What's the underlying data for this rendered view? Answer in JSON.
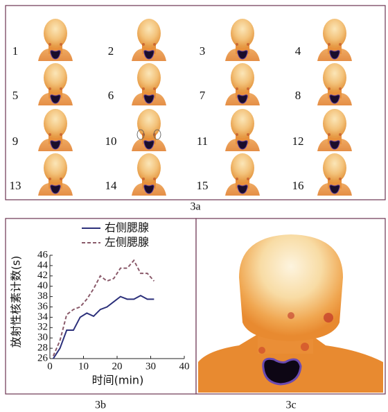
{
  "panel_a": {
    "labels": [
      "1",
      "2",
      "3",
      "4",
      "5",
      "6",
      "7",
      "8",
      "9",
      "10",
      "11",
      "12",
      "13",
      "14",
      "15",
      "16"
    ],
    "caption": "3a"
  },
  "chart_data": {
    "type": "line",
    "caption": "3b",
    "xlabel": "时间(min)",
    "ylabel": "放射性核素计数(s)",
    "x": [
      1,
      3,
      5,
      7,
      9,
      11,
      13,
      15,
      17,
      19,
      21,
      23,
      25,
      27,
      29,
      31
    ],
    "series": [
      {
        "name": "右侧腮腺",
        "color": "#2b2f7a",
        "dash": false,
        "values": [
          26,
          28,
          31.5,
          31.5,
          34,
          34.8,
          34.2,
          35.5,
          36,
          37,
          38,
          37.5,
          37.5,
          38.2,
          37.5,
          37.5
        ]
      },
      {
        "name": "左侧腮腺",
        "color": "#8a5a6a",
        "dash": true,
        "values": [
          26.5,
          29.5,
          34.5,
          35.5,
          36,
          37.5,
          39.5,
          42,
          41,
          41.5,
          43.5,
          43.5,
          45,
          42.5,
          42.5,
          41
        ]
      }
    ],
    "xlim": [
      0,
      40
    ],
    "xticks": [
      0,
      10,
      20,
      30,
      40
    ],
    "ylim": [
      26,
      46
    ],
    "yticks": [
      26,
      28,
      30,
      32,
      34,
      36,
      38,
      40,
      42,
      44,
      46
    ],
    "legend": "top-left"
  },
  "panel_c": {
    "caption": "3c"
  }
}
